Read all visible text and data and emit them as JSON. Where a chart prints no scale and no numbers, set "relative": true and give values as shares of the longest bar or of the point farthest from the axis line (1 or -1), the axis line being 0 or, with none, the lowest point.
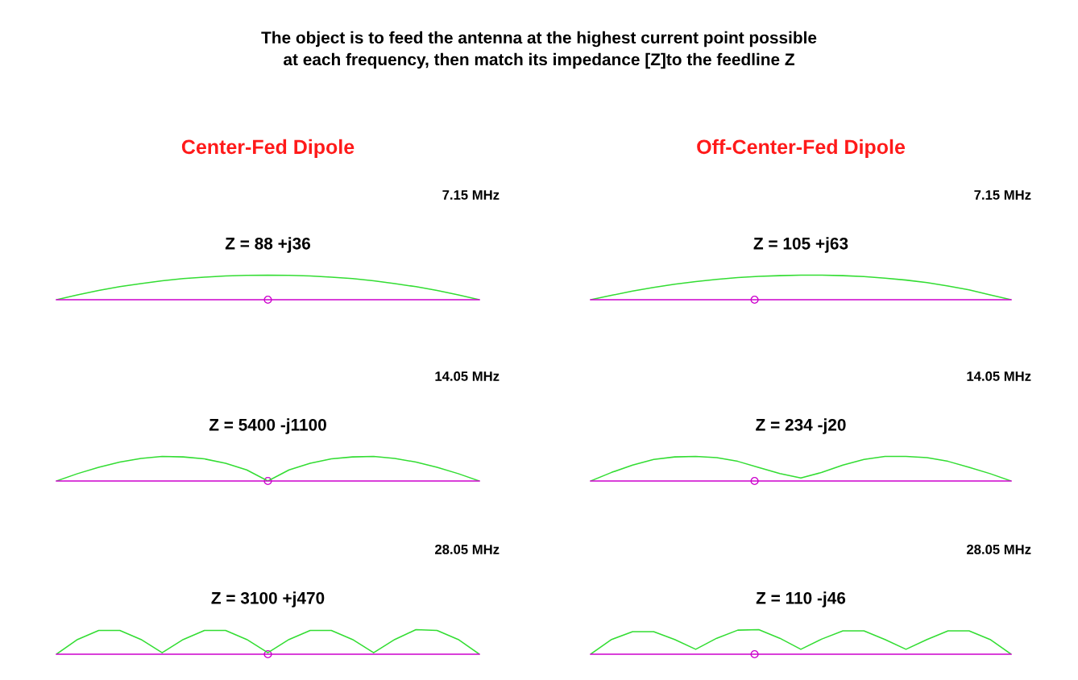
{
  "chart_data": [
    {
      "type": "line",
      "relative": true,
      "title": "Z = 88 +j36",
      "subtitle": "7.15 MHz",
      "annotations": [
        "The object is to feed the antenna at the highest current point possible\nat each frequency, then match its impedance [Z]to the feedline Z",
        "Center-Fed Dipole"
      ],
      "categories": [
        null,
        null,
        null,
        null,
        null,
        null,
        null,
        null,
        null,
        null,
        null,
        null,
        null,
        null,
        null,
        null,
        null,
        null,
        null,
        null,
        null
      ],
      "series": [
        {
          "color": "#33dd33",
          "values": [
            0,
            0.2,
            0.38,
            0.53,
            0.66,
            0.77,
            0.86,
            0.92,
            0.97,
            0.99,
            1,
            0.99,
            0.97,
            0.92,
            0.86,
            0.77,
            0.66,
            0.53,
            0.38,
            0.2,
            0
          ]
        }
      ]
    },
    {
      "type": "line",
      "relative": true,
      "title": "Z = 105 +j63",
      "subtitle": "7.15 MHz",
      "annotations": [
        "Off-Center-Fed Dipole"
      ],
      "categories": [
        null,
        null,
        null,
        null,
        null,
        null,
        null,
        null,
        null,
        null,
        null,
        null,
        null,
        null,
        null,
        null,
        null,
        null,
        null,
        null,
        null
      ],
      "series": [
        {
          "color": "#33dd33",
          "values": [
            0,
            0.18,
            0.35,
            0.5,
            0.63,
            0.74,
            0.83,
            0.9,
            0.95,
            0.98,
            1,
            1,
            0.98,
            0.94,
            0.88,
            0.8,
            0.7,
            0.56,
            0.4,
            0.2,
            0
          ]
        }
      ]
    },
    {
      "type": "line",
      "relative": true,
      "title": "Z = 5400 -j1100",
      "subtitle": "14.05 MHz",
      "categories": [
        null,
        null,
        null,
        null,
        null,
        null,
        null,
        null,
        null,
        null,
        null,
        null,
        null,
        null,
        null,
        null,
        null,
        null,
        null,
        null,
        null
      ],
      "series": [
        {
          "color": "#33dd33",
          "values": [
            0,
            0.3,
            0.56,
            0.77,
            0.92,
            1,
            0.98,
            0.9,
            0.72,
            0.45,
            0,
            0.45,
            0.72,
            0.9,
            0.98,
            1,
            0.92,
            0.77,
            0.56,
            0.3,
            0
          ]
        }
      ]
    },
    {
      "type": "line",
      "relative": true,
      "title": "Z = 234 -j20",
      "subtitle": "14.05 MHz",
      "categories": [
        null,
        null,
        null,
        null,
        null,
        null,
        null,
        null,
        null,
        null,
        null,
        null,
        null,
        null,
        null,
        null,
        null,
        null,
        null,
        null,
        null
      ],
      "series": [
        {
          "color": "#33dd33",
          "values": [
            0,
            0.35,
            0.65,
            0.88,
            0.98,
            1,
            0.95,
            0.8,
            0.55,
            0.3,
            0.12,
            0.35,
            0.65,
            0.88,
            1,
            1,
            0.95,
            0.8,
            0.56,
            0.3,
            0
          ]
        }
      ]
    },
    {
      "type": "line",
      "relative": true,
      "title": "Z = 3100 +j470",
      "subtitle": "28.05 MHz",
      "categories": [
        null,
        null,
        null,
        null,
        null,
        null,
        null,
        null,
        null,
        null,
        null,
        null,
        null,
        null,
        null,
        null,
        null,
        null,
        null,
        null,
        null
      ],
      "series": [
        {
          "color": "#33dd33",
          "values": [
            0,
            0.6,
            0.97,
            0.97,
            0.6,
            0.06,
            0.6,
            0.97,
            0.97,
            0.6,
            0.06,
            0.6,
            0.97,
            0.97,
            0.6,
            0.06,
            0.6,
            1,
            0.97,
            0.6,
            0
          ]
        }
      ]
    },
    {
      "type": "line",
      "relative": true,
      "title": "Z = 110 -j46",
      "subtitle": "28.05 MHz",
      "categories": [
        null,
        null,
        null,
        null,
        null,
        null,
        null,
        null,
        null,
        null,
        null,
        null,
        null,
        null,
        null,
        null,
        null,
        null,
        null,
        null,
        null
      ],
      "series": [
        {
          "color": "#33dd33",
          "values": [
            0,
            0.6,
            0.92,
            0.92,
            0.6,
            0.2,
            0.65,
            0.98,
            1,
            0.65,
            0.2,
            0.62,
            0.95,
            0.95,
            0.6,
            0.2,
            0.6,
            0.95,
            0.95,
            0.6,
            0
          ]
        }
      ]
    }
  ]
}
